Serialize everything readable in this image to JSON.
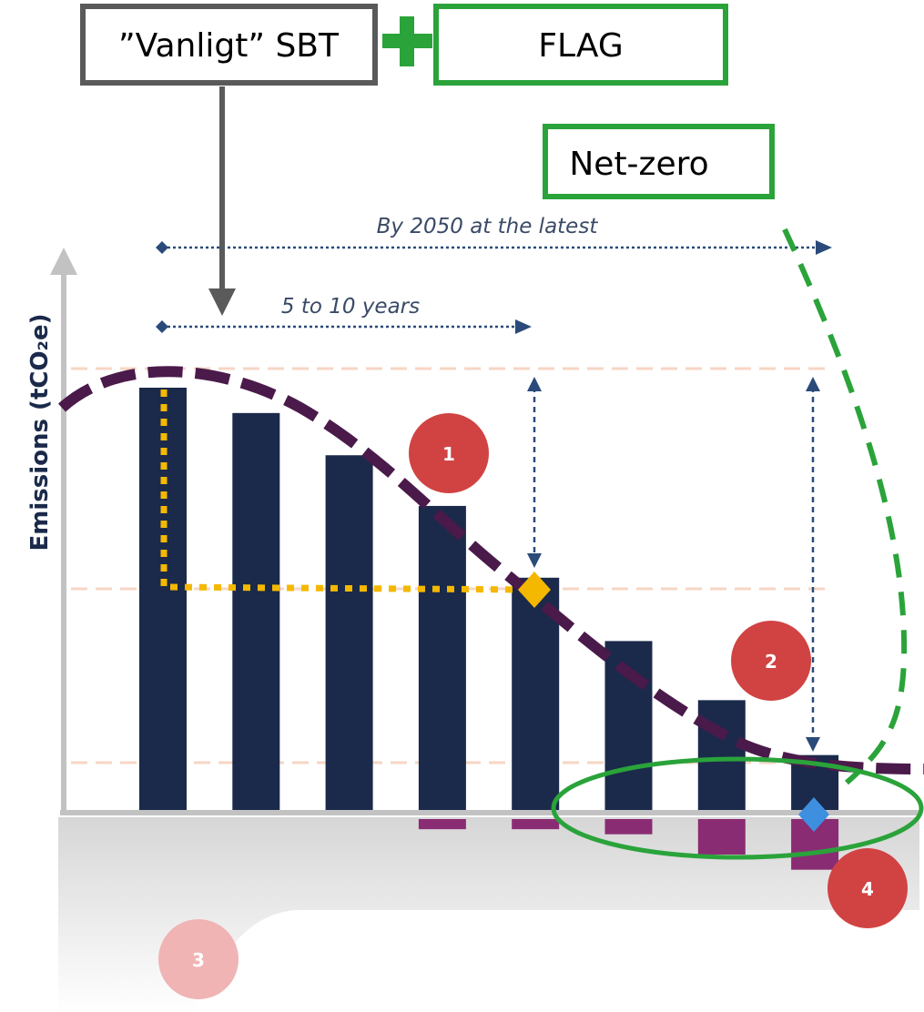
{
  "boxes": {
    "sbt": "”Vanligt” SBT",
    "flag": "FLAG",
    "netzero": "Net-zero"
  },
  "chart": {
    "ylabel": "Emissions (tCO₂e)",
    "span_long": "By 2050 at the latest",
    "span_short": "5 to 10 years",
    "markers": [
      "1",
      "2",
      "3",
      "4"
    ],
    "bar_levels": [
      1.0,
      0.94,
      0.84,
      0.72,
      0.55,
      0.4,
      0.26,
      0.13
    ],
    "removal_levels": [
      0,
      0,
      0,
      0.02,
      0.02,
      0.03,
      0.07,
      0.1
    ],
    "colors": {
      "bars": "#1b2a4a",
      "trajectory": "#4a1a4a",
      "removals": "#8a2c73",
      "near_term_target": "#f5b800",
      "net_zero_target": "#3f8fe0",
      "highlight": "#2aa33a",
      "marker": "#d14343",
      "marker_faded": "#f0b4b4"
    }
  }
}
